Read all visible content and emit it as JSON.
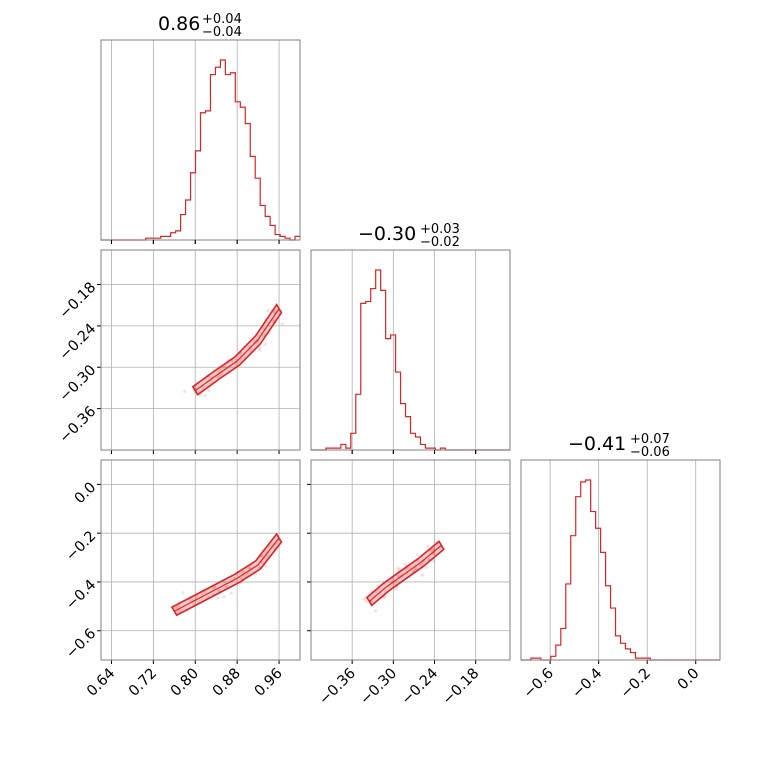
{
  "chart_data": {
    "type": "corner",
    "parameters": [
      {
        "title": {
          "median": "0.86",
          "plus": "+0.04",
          "minus": "−0.04"
        },
        "range": [
          0.62,
          1.0
        ],
        "ticks": [
          0.64,
          0.72,
          0.8,
          0.88,
          0.96
        ],
        "tick_labels": [
          "0.64",
          "0.72",
          "0.80",
          "0.88",
          "0.96"
        ],
        "hist_edges_start": 0.62,
        "hist_bin_width": 0.0095,
        "hist_counts": [
          0,
          0,
          0,
          0,
          0,
          0,
          0,
          0,
          0,
          1,
          1,
          1,
          2,
          2,
          4,
          5,
          14,
          22,
          37,
          49,
          70,
          71,
          91,
          95,
          99,
          91,
          92,
          76,
          73,
          64,
          46,
          34,
          19,
          13,
          8,
          3,
          2,
          1,
          0,
          2
        ]
      },
      {
        "title": {
          "median": "−0.30",
          "plus": "+0.03",
          "minus": "−0.02"
        },
        "range": [
          -0.42,
          -0.13
        ],
        "ticks": [
          -0.36,
          -0.3,
          -0.24,
          -0.18
        ],
        "tick_labels": [
          "−0.36",
          "−0.30",
          "−0.24",
          "−0.18"
        ],
        "hist_edges_start": -0.42,
        "hist_bin_width": 0.00725,
        "hist_counts": [
          0,
          0,
          0,
          1,
          1,
          1,
          3,
          1,
          9,
          30,
          79,
          80,
          87,
          97,
          86,
          60,
          62,
          42,
          25,
          18,
          9,
          7,
          3,
          1,
          1,
          0,
          1,
          0,
          0,
          0,
          0,
          0,
          0,
          0,
          0,
          0,
          0,
          0,
          0,
          0
        ]
      },
      {
        "title": {
          "median": "−0.41",
          "plus": "+0.07",
          "minus": "−0.06"
        },
        "range": [
          -0.72,
          0.1
        ],
        "ticks": [
          -0.6,
          -0.4,
          -0.2,
          0.0
        ],
        "tick_labels": [
          "−0.6",
          "−0.4",
          "−0.2",
          "0.0"
        ],
        "hist_edges_start": -0.72,
        "hist_bin_width": 0.0205,
        "hist_counts": [
          0,
          0,
          1,
          1,
          0,
          0,
          2,
          8,
          17,
          41,
          67,
          88,
          96,
          97,
          80,
          71,
          58,
          40,
          28,
          13,
          9,
          6,
          4,
          1,
          1,
          1,
          0,
          0,
          0,
          0,
          0,
          0,
          0,
          0,
          0,
          0,
          0,
          0,
          0,
          0
        ]
      }
    ],
    "joint": {
      "p1_vs_p0": {
        "trend": [
          [
            0.8,
            -0.334
          ],
          [
            0.84,
            -0.312
          ],
          [
            0.88,
            -0.291
          ],
          [
            0.92,
            -0.26
          ],
          [
            0.96,
            -0.215
          ]
        ]
      },
      "p2_vs_p0": {
        "trend": [
          [
            0.76,
            -0.52
          ],
          [
            0.8,
            -0.475
          ],
          [
            0.84,
            -0.43
          ],
          [
            0.88,
            -0.385
          ],
          [
            0.92,
            -0.33
          ],
          [
            0.96,
            -0.22
          ]
        ]
      },
      "p2_vs_p1": {
        "trend": [
          [
            -0.335,
            -0.48
          ],
          [
            -0.31,
            -0.42
          ],
          [
            -0.29,
            -0.38
          ],
          [
            -0.26,
            -0.32
          ],
          [
            -0.23,
            -0.25
          ]
        ]
      }
    },
    "color": "#d62728",
    "grid": true
  }
}
